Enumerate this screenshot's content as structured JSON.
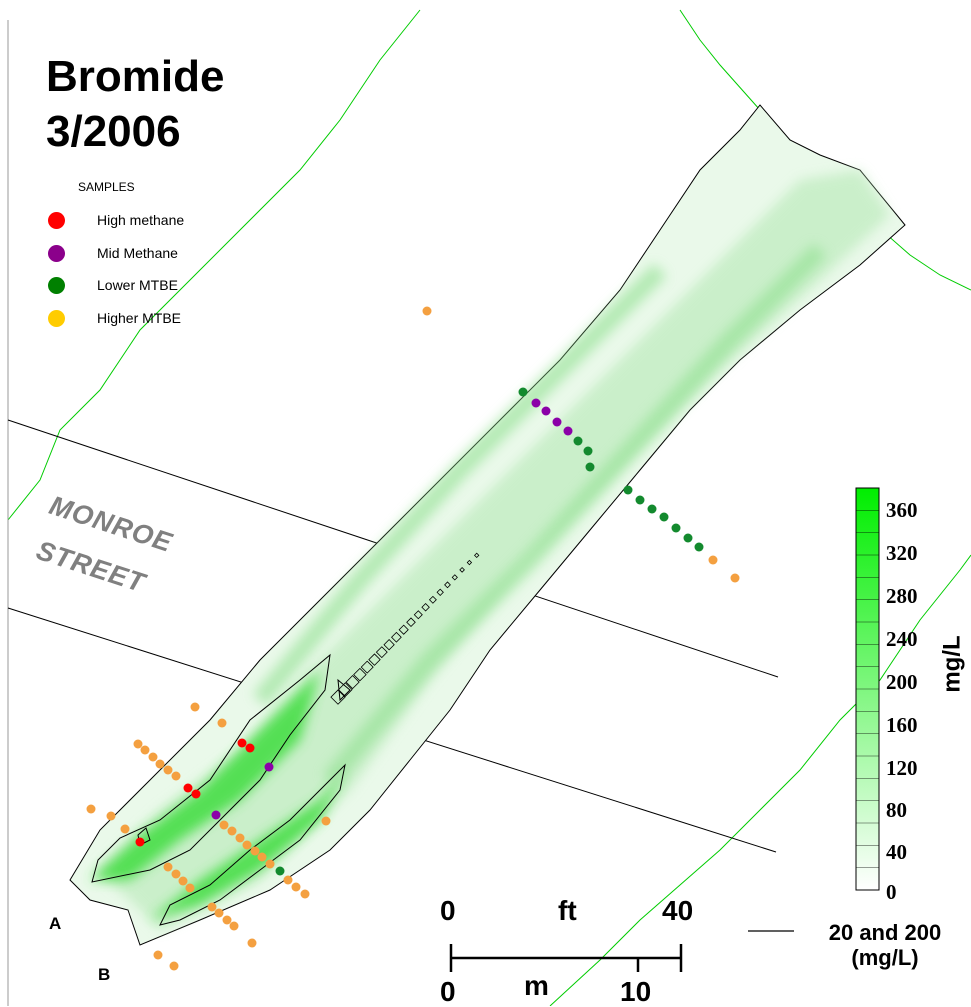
{
  "title": {
    "line1": "Bromide",
    "line2": "3/2006"
  },
  "legend": {
    "header": "SAMPLES",
    "items": [
      {
        "label": "High methane",
        "color": "#ff0000"
      },
      {
        "label": "Mid Methane",
        "color": "#8b008b"
      },
      {
        "label": "Lower MTBE",
        "color": "#008000"
      },
      {
        "label": "Higher MTBE",
        "color": "#ffcc00"
      }
    ]
  },
  "street": {
    "line1": "MONROE",
    "line2": "STREET"
  },
  "colorbar": {
    "unit": "mg/L",
    "ticks": [
      "360",
      "320",
      "280",
      "240",
      "200",
      "160",
      "120",
      "80",
      "40",
      "0"
    ],
    "low_color": "#ffffff",
    "high_color": "#00ee00"
  },
  "scale": {
    "ft_zero": "0",
    "ft_unit": "ft",
    "ft_max": "40",
    "m_zero": "0",
    "m_unit": "m",
    "m_max": "10"
  },
  "contour_legend": {
    "line1": "20 and 200",
    "line2": "(mg/L)"
  },
  "labels": {
    "a": "A",
    "b": "B"
  },
  "colors": {
    "boundary": "#00cc00",
    "plume": "#7fe07f",
    "sample_orange": "#f4a040",
    "sample_red": "#ff0000",
    "sample_purple": "#8b00a8",
    "sample_green": "#138a2e"
  }
}
